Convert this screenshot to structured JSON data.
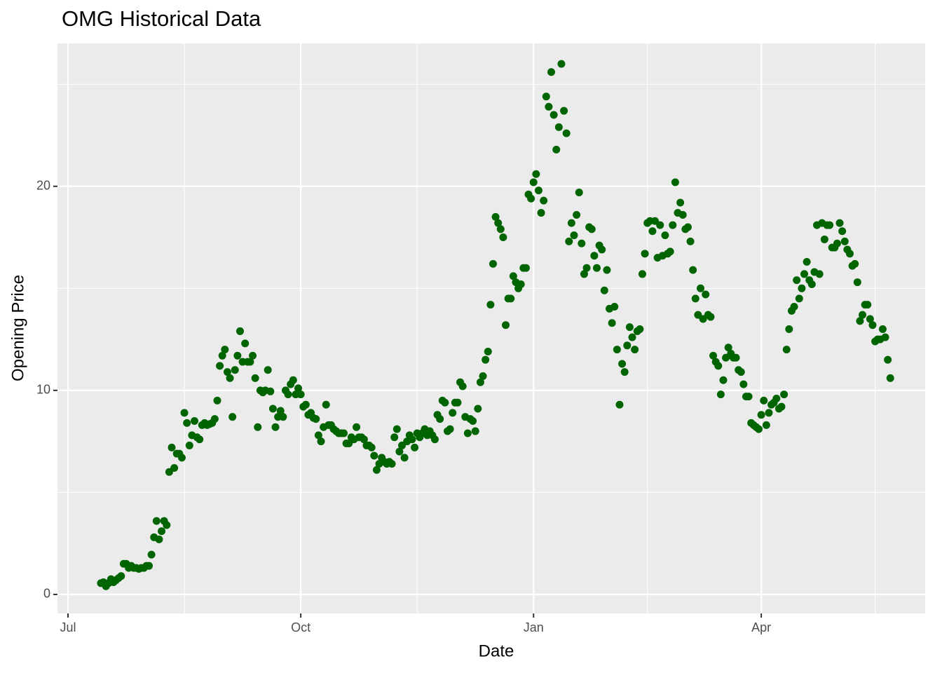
{
  "chart_data": {
    "type": "scatter",
    "title": "OMG Historical Data",
    "x_label": "Date",
    "y_label": "Opening Price",
    "categories": [
      "Jul",
      null,
      null,
      null,
      null,
      null,
      null,
      null,
      null,
      null,
      null,
      null,
      null,
      null,
      null,
      null,
      null,
      null,
      null,
      null,
      null,
      null,
      null,
      null,
      null,
      null,
      null,
      null,
      null,
      null,
      null,
      null,
      null,
      null,
      null,
      null,
      null,
      null,
      null,
      null,
      null,
      null,
      null,
      null,
      null,
      null,
      null,
      null,
      null,
      null,
      null,
      null,
      null,
      null,
      null,
      null,
      null,
      null,
      null,
      null,
      null,
      null,
      null,
      null,
      null,
      null,
      null,
      null,
      null,
      null,
      null,
      null,
      null,
      null,
      null,
      null,
      null,
      null,
      null,
      null,
      null,
      null,
      null,
      null,
      null,
      null,
      null,
      null,
      null,
      null,
      null,
      null,
      "Oct",
      null,
      null,
      null,
      null,
      null,
      null,
      null,
      null,
      null,
      null,
      null,
      null,
      null,
      null,
      null,
      null,
      null,
      null,
      null,
      null,
      null,
      null,
      null,
      null,
      null,
      null,
      null,
      null,
      null,
      null,
      null,
      null,
      null,
      null,
      null,
      null,
      null,
      null,
      null,
      null,
      null,
      null,
      null,
      null,
      null,
      null,
      null,
      null,
      null,
      null,
      null,
      null,
      null,
      null,
      null,
      null,
      null,
      null,
      null,
      null,
      null,
      null,
      null,
      null,
      null,
      null,
      null,
      null,
      null,
      null,
      null,
      null,
      null,
      null,
      null,
      null,
      null,
      null,
      null,
      null,
      null,
      null,
      null,
      null,
      null,
      null,
      null,
      null,
      null,
      null,
      null,
      "Jan",
      null,
      null,
      null,
      null,
      null,
      null,
      null,
      null,
      null,
      null,
      null,
      null,
      null,
      null,
      null,
      null,
      null,
      null,
      null,
      null,
      null,
      null,
      null,
      null,
      null,
      null,
      null,
      null,
      null,
      null,
      null,
      null,
      null,
      null,
      null,
      null,
      null,
      null,
      null,
      null,
      null,
      null,
      null,
      null,
      null,
      null,
      null,
      null,
      null,
      null,
      null,
      null,
      null,
      null,
      null,
      null,
      null,
      null,
      null,
      null,
      null,
      null,
      null,
      null,
      null,
      null,
      null,
      null,
      null,
      null,
      null,
      null,
      null,
      null,
      null,
      null,
      null,
      null,
      null,
      null,
      null,
      null,
      null,
      null,
      null,
      null,
      null,
      null,
      null,
      "Apr",
      null,
      null,
      null,
      null,
      null,
      null,
      null,
      null,
      null,
      null,
      null,
      null,
      null,
      null,
      null,
      null,
      null,
      null,
      null,
      null,
      null,
      null,
      null,
      null,
      null,
      null,
      null,
      null,
      null,
      null,
      null,
      null,
      null,
      null,
      null,
      null,
      null,
      null,
      null,
      null,
      null,
      null,
      null,
      null,
      null,
      null,
      null,
      null,
      null,
      null,
      null
    ],
    "values": [
      null,
      null,
      null,
      null,
      null,
      null,
      null,
      null,
      null,
      null,
      null,
      null,
      null,
      0.55,
      0.6,
      0.4,
      0.55,
      0.75,
      0.6,
      0.7,
      0.8,
      0.9,
      1.5,
      1.5,
      1.3,
      1.4,
      1.3,
      1.3,
      1.25,
      1.3,
      1.3,
      1.4,
      1.4,
      1.95,
      2.8,
      3.6,
      2.7,
      3.1,
      3.6,
      3.4,
      6.0,
      7.2,
      6.2,
      6.9,
      6.9,
      6.7,
      8.9,
      8.4,
      7.3,
      7.8,
      8.5,
      7.7,
      7.6,
      8.3,
      8.4,
      8.3,
      8.35,
      8.4,
      8.6,
      9.5,
      11.2,
      11.7,
      12.0,
      10.9,
      10.6,
      8.7,
      11.0,
      11.7,
      12.9,
      11.4,
      12.3,
      11.4,
      11.4,
      11.7,
      10.6,
      8.2,
      10.0,
      9.9,
      10.0,
      11.0,
      9.95,
      9.1,
      8.2,
      8.7,
      9.0,
      8.7,
      10.0,
      9.8,
      10.3,
      10.5,
      9.8,
      10.1,
      9.8,
      9.2,
      9.3,
      8.8,
      8.9,
      8.65,
      8.6,
      7.8,
      7.5,
      8.2,
      9.3,
      8.3,
      8.3,
      8.1,
      8.0,
      7.9,
      7.9,
      7.9,
      7.4,
      7.4,
      7.7,
      7.6,
      8.2,
      7.7,
      7.7,
      7.6,
      7.3,
      7.3,
      7.2,
      6.8,
      6.1,
      6.4,
      6.7,
      6.5,
      6.4,
      6.5,
      6.4,
      7.7,
      8.1,
      7.0,
      7.3,
      6.7,
      7.5,
      7.8,
      7.6,
      7.2,
      7.9,
      7.7,
      7.9,
      8.1,
      7.8,
      8.0,
      7.8,
      7.6,
      8.8,
      8.6,
      9.5,
      9.4,
      8.0,
      8.1,
      8.9,
      9.4,
      9.4,
      10.4,
      10.2,
      8.7,
      7.9,
      8.6,
      8.5,
      8.0,
      9.1,
      10.4,
      10.7,
      11.5,
      11.9,
      14.2,
      16.2,
      18.5,
      18.2,
      17.9,
      17.5,
      13.2,
      14.5,
      14.5,
      15.6,
      15.3,
      15.0,
      15.2,
      16.0,
      16.0,
      19.6,
      19.4,
      20.2,
      20.6,
      19.8,
      18.7,
      19.3,
      24.4,
      23.9,
      25.6,
      23.5,
      21.8,
      22.9,
      26.0,
      23.7,
      22.6,
      17.3,
      18.2,
      17.6,
      18.6,
      19.7,
      17.2,
      15.7,
      16.0,
      18.0,
      17.9,
      16.6,
      16.0,
      17.1,
      16.9,
      14.9,
      15.9,
      14.0,
      13.3,
      14.1,
      12.0,
      9.3,
      11.3,
      10.9,
      12.2,
      13.1,
      12.6,
      12.0,
      12.9,
      13.0,
      15.7,
      16.7,
      18.2,
      18.3,
      17.8,
      18.3,
      16.5,
      18.1,
      16.6,
      17.6,
      16.7,
      16.8,
      18.1,
      20.2,
      18.7,
      19.2,
      18.6,
      17.9,
      18.0,
      17.3,
      15.9,
      14.5,
      13.7,
      15.0,
      13.5,
      14.7,
      13.7,
      13.6,
      11.7,
      11.4,
      11.2,
      9.8,
      10.5,
      11.6,
      12.1,
      11.8,
      11.6,
      11.6,
      11.0,
      10.9,
      10.3,
      9.7,
      9.7,
      8.4,
      8.3,
      8.2,
      8.1,
      8.8,
      9.5,
      8.3,
      8.9,
      9.3,
      9.4,
      9.6,
      9.1,
      9.2,
      9.8,
      12.0,
      13.0,
      13.9,
      14.1,
      15.4,
      14.5,
      15.0,
      15.7,
      16.3,
      15.4,
      15.2,
      15.8,
      18.1,
      15.7,
      18.2,
      17.4,
      18.1,
      18.1,
      17.0,
      17.0,
      17.2,
      18.2,
      17.8,
      17.3,
      16.9,
      16.7,
      16.1,
      16.2,
      15.3,
      13.4,
      13.7,
      14.2,
      14.2,
      13.5,
      13.2,
      12.4,
      12.5,
      12.5,
      13.0,
      12.6,
      11.5,
      10.6
    ],
    "color": "#006400",
    "ylim": [
      -0.93,
      27
    ],
    "yticks": [
      0,
      10,
      20
    ],
    "grid": true
  }
}
